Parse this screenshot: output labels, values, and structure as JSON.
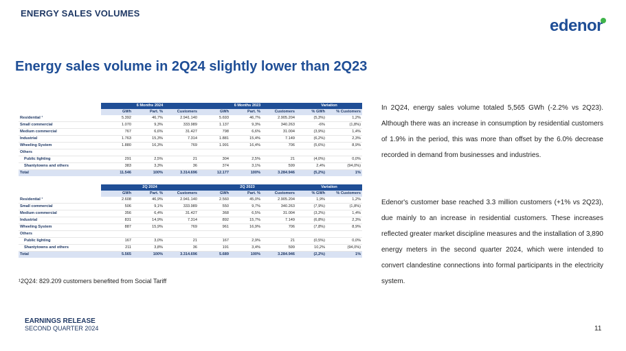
{
  "header": {
    "section_title": "ENERGY SALES VOLUMES",
    "logo_text": "edenor"
  },
  "headline": "Energy sales volume in 2Q24 slightly lower than 2Q23",
  "table1": {
    "groups": [
      "6 Months 2024",
      "6 Months 2023",
      "Variation"
    ],
    "columns": [
      "GWh",
      "Part. %",
      "Customers",
      "GWh",
      "Part. %",
      "Customers",
      "% GWh",
      "% Customers"
    ],
    "rows": [
      {
        "label": "Residential ¹",
        "values": [
          "5.392",
          "46,7%",
          "2.941.140",
          "5.693",
          "46,7%",
          "2.905.204",
          "(5,3%)",
          "1,2%"
        ]
      },
      {
        "label": "Small commercial",
        "values": [
          "1.070",
          "9,3%",
          "333.989",
          "1.137",
          "9,3%",
          "340.263",
          "-6%",
          "(1,8%)"
        ]
      },
      {
        "label": "Medium commercial",
        "values": [
          "767",
          "6,6%",
          "31.427",
          "798",
          "6,6%",
          "31.004",
          "(3,9%)",
          "1,4%"
        ]
      },
      {
        "label": "Industrial",
        "values": [
          "1.763",
          "15,3%",
          "7.314",
          "1.881",
          "15,4%",
          "7.149",
          "(6,2%)",
          "2,3%"
        ]
      },
      {
        "label": "Wheeling System",
        "values": [
          "1.880",
          "16,3%",
          "769",
          "1.991",
          "16,4%",
          "706",
          "(5,6%)",
          "8,9%"
        ]
      },
      {
        "label": "Others",
        "values": [
          "",
          "",
          "",
          "",
          "",
          "",
          "",
          ""
        ]
      },
      {
        "label": "Public lighting",
        "values": [
          "291",
          "2,5%",
          "21",
          "304",
          "2,5%",
          "21",
          "(4,0%)",
          "0,0%"
        ]
      },
      {
        "label": "Shantytowns and others",
        "values": [
          "383",
          "3,3%",
          "36",
          "374",
          "3,1%",
          "599",
          "2,4%",
          "(94,0%)"
        ]
      }
    ],
    "total": {
      "label": "Total",
      "values": [
        "11.546",
        "100%",
        "3.314.696",
        "12.177",
        "100%",
        "3.284.946",
        "(5,2%)",
        "1%"
      ]
    }
  },
  "table2": {
    "groups": [
      "2Q 2024",
      "2Q 2023",
      "Variation"
    ],
    "columns": [
      "GWh",
      "Part. %",
      "Customers",
      "GWh",
      "Part. %",
      "Customers",
      "% GWh",
      "% Customers"
    ],
    "rows": [
      {
        "label": "Residential ¹",
        "values": [
          "2.608",
          "46,9%",
          "2.941.140",
          "2.560",
          "45,0%",
          "2.905.204",
          "1,9%",
          "1,2%"
        ]
      },
      {
        "label": "Small commercial",
        "values": [
          "506",
          "9,1%",
          "333.989",
          "550",
          "9,7%",
          "340.263",
          "(7,9%)",
          "(1,8%)"
        ]
      },
      {
        "label": "Medium commercial",
        "values": [
          "356",
          "6,4%",
          "31.427",
          "368",
          "6,5%",
          "31.004",
          "(3,2%)",
          "1,4%"
        ]
      },
      {
        "label": "Industrial",
        "values": [
          "831",
          "14,9%",
          "7.314",
          "892",
          "15,7%",
          "7.149",
          "(6,8%)",
          "2,3%"
        ]
      },
      {
        "label": "Wheeling System",
        "values": [
          "887",
          "15,9%",
          "769",
          "961",
          "16,9%",
          "706",
          "(7,8%)",
          "8,9%"
        ]
      },
      {
        "label": "Others",
        "values": [
          "",
          "",
          "",
          "",
          "",
          "",
          "",
          ""
        ]
      },
      {
        "label": "Public lighting",
        "values": [
          "167",
          "3,0%",
          "21",
          "167",
          "2,9%",
          "21",
          "(0,5%)",
          "0,0%"
        ]
      },
      {
        "label": "Shantytowns and others",
        "values": [
          "211",
          "3,8%",
          "36",
          "191",
          "3,4%",
          "599",
          "10,2%",
          "(94,0%)"
        ]
      }
    ],
    "total": {
      "label": "Total",
      "values": [
        "5.565",
        "100%",
        "3.314.696",
        "5.689",
        "100%",
        "3.284.946",
        "(2,2%)",
        "1%"
      ]
    }
  },
  "footnote": "¹2Q24: 829.209 customers benefited from Social Tariff",
  "paragraphs": [
    "In 2Q24, energy sales volume totaled 5,565 GWh (-2.2% vs 2Q23). Although there was an increase in consumption by residential customers of 1.9% in the period, this was more than offset by the 6.0% decrease recorded in demand from businesses and industries.",
    "Edenor's customer base reached 3.3 million customers (+1% vs 2Q23), due mainly to an increase in residential customers. These increases reflected greater market discipline measures and the installation of 3,890 energy meters in the second quarter 2024, which were intended to convert clandestine connections into formal participants in the electricity system."
  ],
  "footer": {
    "line1": "EARNINGS RELEASE",
    "line2": "SECOND QUARTER 2024",
    "page_number": "11"
  }
}
